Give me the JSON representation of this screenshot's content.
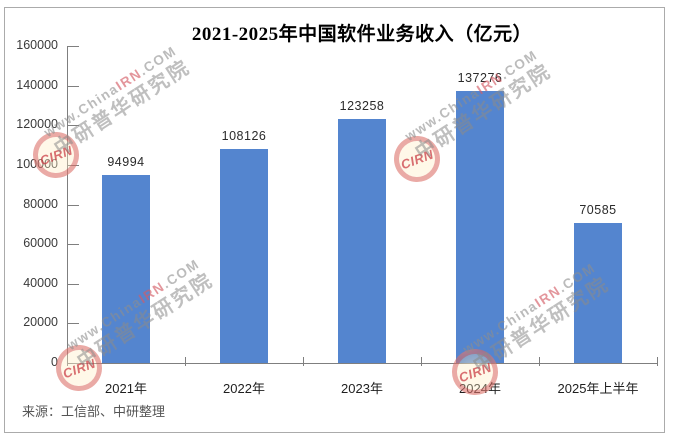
{
  "chart_data": {
    "type": "bar",
    "title": "2021-2025年中国软件业务收入（亿元）",
    "categories": [
      "2021年",
      "2022年",
      "2023年",
      "2024年",
      "2025年上半年"
    ],
    "values": [
      94994,
      108126,
      123258,
      137276,
      70585
    ],
    "data_labels": [
      "94994",
      "108126",
      "123258",
      "137276",
      "70585"
    ],
    "ylim": [
      0,
      160000
    ],
    "ytick_step": 20000,
    "ytick_labels": [
      "0",
      "20000",
      "40000",
      "60000",
      "80000",
      "100000",
      "120000",
      "140000",
      "160000"
    ],
    "grid": false,
    "legend_position": "none",
    "bar_color": "#5485CF",
    "xlabel": "",
    "ylabel": ""
  },
  "source_note": "来源：工信部、中研整理",
  "watermark": {
    "logo_text": "CIRN",
    "url_part_gray1": "www.China",
    "url_part_red": "IRN",
    "url_part_gray2": ".COM",
    "brand_line": "中研普华研究院"
  },
  "colors": {
    "bar": "#5485CF",
    "axis": "#7f7f7f",
    "frame_border": "#ababab",
    "title_text": "#000000",
    "tick_text": "#3a3a3a",
    "source_text": "#555555",
    "watermark_red": "#CD3E48",
    "watermark_gray": "#8E8E8E"
  }
}
